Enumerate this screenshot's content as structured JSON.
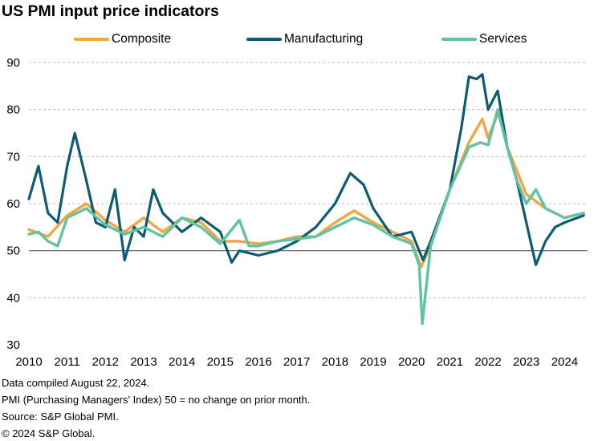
{
  "title": "US PMI input price indicators",
  "colors": {
    "composite": "#f2a541",
    "manufacturing": "#0c5b77",
    "services": "#5fc3a4",
    "baseline": "#555555",
    "grid": "#bbbbbb"
  },
  "notes": [
    "Data compiled August 22, 2024.",
    "PMI (Purchasing Managers' Index) 50 =  no change on prior month.",
    "Source: S&P Global PMI.",
    "© 2024 S&P Global."
  ],
  "chart_data": {
    "type": "line",
    "title": "US PMI input price indicators",
    "xlabel": "",
    "ylabel": "",
    "xlim": [
      2010,
      2024.6
    ],
    "ylim": [
      30,
      90
    ],
    "yticks": [
      30,
      40,
      50,
      60,
      70,
      80,
      90
    ],
    "xticks": [
      "2010",
      "2011",
      "2012",
      "2013",
      "2014",
      "2015",
      "2016",
      "2017",
      "2018",
      "2019",
      "2020",
      "2021",
      "2022",
      "2023",
      "2024"
    ],
    "grid": "horizontal dashed",
    "legend": "top",
    "reference_line": 50,
    "series": [
      {
        "name": "Composite",
        "x": [
          2010.0,
          2010.5,
          2011.0,
          2011.5,
          2012.0,
          2012.5,
          2013.0,
          2013.5,
          2014.0,
          2014.5,
          2015.0,
          2015.5,
          2016.0,
          2016.5,
          2017.0,
          2017.5,
          2018.0,
          2018.5,
          2019.0,
          2019.5,
          2020.0,
          2020.25,
          2020.5,
          2021.0,
          2021.5,
          2021.85,
          2022.0,
          2022.3,
          2022.5,
          2023.0,
          2023.5,
          2024.0,
          2024.5
        ],
        "values": [
          54.5,
          53,
          57.5,
          60,
          56.5,
          54,
          57,
          54,
          57,
          56,
          52,
          52,
          51.5,
          52,
          53,
          53,
          56,
          58.5,
          56,
          54,
          52,
          46.5,
          51,
          63,
          73,
          78,
          74,
          80,
          72,
          62,
          59,
          57,
          58
        ]
      },
      {
        "name": "Manufacturing",
        "x": [
          2010.0,
          2010.25,
          2010.5,
          2010.75,
          2011.0,
          2011.2,
          2011.5,
          2011.75,
          2012.0,
          2012.25,
          2012.5,
          2012.75,
          2013.0,
          2013.25,
          2013.5,
          2014.0,
          2014.5,
          2015.0,
          2015.3,
          2015.5,
          2016.0,
          2016.5,
          2017.0,
          2017.5,
          2018.0,
          2018.4,
          2018.75,
          2019.0,
          2019.5,
          2020.0,
          2020.3,
          2020.5,
          2021.0,
          2021.3,
          2021.5,
          2021.7,
          2021.85,
          2022.0,
          2022.25,
          2022.5,
          2022.75,
          2023.0,
          2023.25,
          2023.5,
          2023.75,
          2024.0,
          2024.5
        ],
        "values": [
          61,
          68,
          58,
          56,
          68,
          75,
          65,
          56,
          55,
          63,
          48,
          55,
          53,
          63,
          58,
          54,
          57,
          54,
          47.5,
          50,
          49,
          50,
          52,
          55,
          60,
          66.5,
          64,
          59,
          53,
          54,
          48,
          52,
          63,
          76,
          87,
          86.5,
          87.5,
          80,
          84,
          72,
          65,
          56,
          47,
          52,
          55,
          56,
          57.5
        ]
      },
      {
        "name": "Services",
        "x": [
          2010.0,
          2010.25,
          2010.5,
          2010.75,
          2011.0,
          2011.5,
          2012.0,
          2012.5,
          2013.0,
          2013.5,
          2014.0,
          2014.5,
          2015.0,
          2015.5,
          2015.75,
          2016.0,
          2016.5,
          2017.0,
          2017.5,
          2018.0,
          2018.5,
          2019.0,
          2019.5,
          2020.0,
          2020.2,
          2020.28,
          2020.5,
          2021.0,
          2021.5,
          2021.8,
          2022.0,
          2022.25,
          2022.5,
          2022.75,
          2023.0,
          2023.25,
          2023.5,
          2024.0,
          2024.5
        ],
        "values": [
          53.5,
          54,
          52,
          51,
          57,
          59,
          55.5,
          53.5,
          55,
          53,
          57,
          55,
          51.5,
          56.5,
          51,
          51,
          52,
          52.5,
          53,
          55,
          57,
          55.5,
          53,
          51.5,
          47,
          34.5,
          51,
          63,
          72,
          73,
          72.5,
          80,
          72,
          65,
          60,
          63,
          59,
          57,
          58
        ]
      }
    ]
  }
}
